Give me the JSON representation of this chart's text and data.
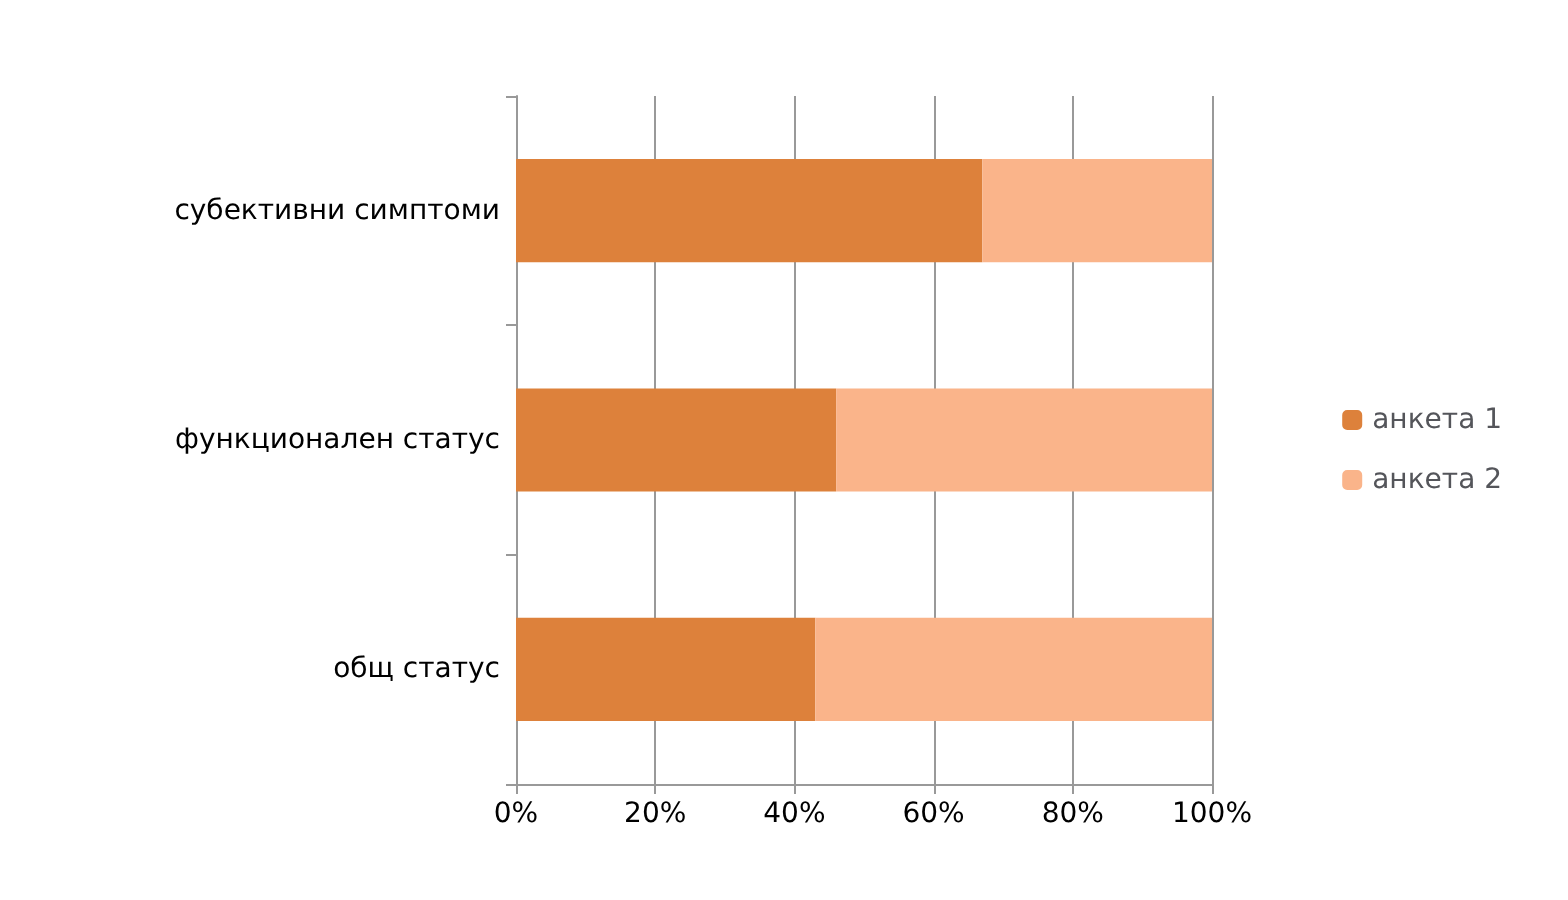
{
  "chart_data": {
    "type": "bar",
    "orientation": "horizontal",
    "stacked": true,
    "categories": [
      "субективни симптоми",
      "функционален статус",
      "общ статус"
    ],
    "series": [
      {
        "name": "анкета 1",
        "color": "#dd813b",
        "values": [
          67,
          46,
          43
        ]
      },
      {
        "name": "анкета 2",
        "color": "#fab48a",
        "values": [
          33,
          54,
          57
        ]
      }
    ],
    "xlim": [
      0,
      100
    ],
    "xticks": [
      {
        "value": 0,
        "label": "0%"
      },
      {
        "value": 20,
        "label": "20%"
      },
      {
        "value": 40,
        "label": "40%"
      },
      {
        "value": 60,
        "label": "60%"
      },
      {
        "value": 80,
        "label": "80%"
      },
      {
        "value": 100,
        "label": "100%"
      }
    ],
    "grid": "x",
    "legend": "right"
  }
}
